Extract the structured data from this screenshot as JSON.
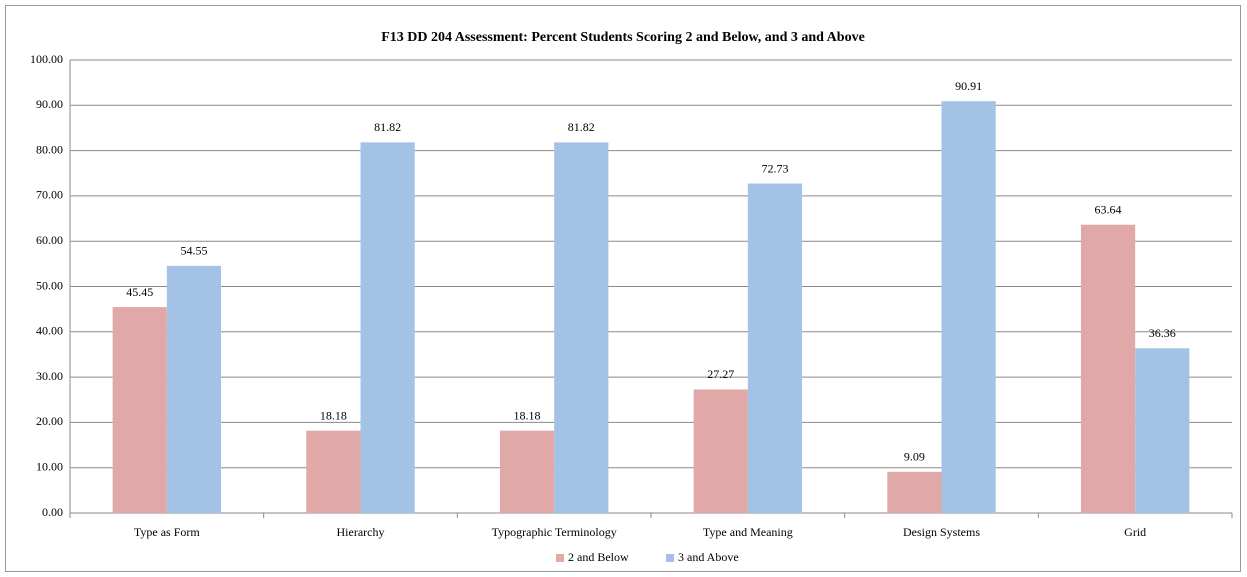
{
  "chart_data": {
    "type": "bar",
    "title": "F13 DD 204 Assessment: Percent Students Scoring 2 and Below, and 3 and Above",
    "categories": [
      "Type as Form",
      "Hierarchy",
      "Typographic Terminology",
      "Type and Meaning",
      "Design Systems",
      "Grid"
    ],
    "series": [
      {
        "name": "2 and Below",
        "color": "#e0a8a6",
        "values": [
          45.45,
          18.18,
          18.18,
          27.27,
          9.09,
          63.64
        ]
      },
      {
        "name": "3 and Above",
        "color": "#a3c2e6",
        "values": [
          54.55,
          81.82,
          81.82,
          72.73,
          90.91,
          36.36
        ]
      }
    ],
    "ylim": [
      0,
      100
    ],
    "yticks": [
      {
        "value": 0,
        "label": "0.00"
      },
      {
        "value": 10,
        "label": "10.00"
      },
      {
        "value": 20,
        "label": "20.00"
      },
      {
        "value": 30,
        "label": "30.00"
      },
      {
        "value": 40,
        "label": "40.00"
      },
      {
        "value": 50,
        "label": "50.00"
      },
      {
        "value": 60,
        "label": "60.00"
      },
      {
        "value": 70,
        "label": "70.00"
      },
      {
        "value": 80,
        "label": "80.00"
      },
      {
        "value": 90,
        "label": "90.00"
      },
      {
        "value": 100,
        "label": "100.00"
      }
    ],
    "grid": true,
    "legend": "bottom"
  }
}
